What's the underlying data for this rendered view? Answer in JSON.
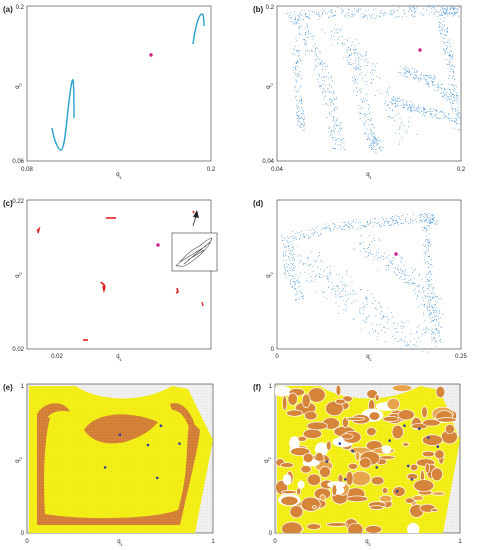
{
  "figure": {
    "panels": [
      {
        "letter": "(a)",
        "xlabel": "q",
        "xsub": "1",
        "ylabel": "q",
        "ysub": "2",
        "xticks": [
          "0.08",
          "0.2"
        ],
        "yticks": [
          "0.06",
          "0.2"
        ]
      },
      {
        "letter": "(b)",
        "xlabel": "q",
        "xsub": "1",
        "ylabel": "q",
        "ysub": "2",
        "xticks": [
          "0.04",
          "0.2"
        ],
        "yticks": [
          "0.04",
          "0.2"
        ]
      },
      {
        "letter": "(c)",
        "xlabel": "q",
        "xsub": "1",
        "ylabel": "q",
        "ysub": "2",
        "xticks": [
          "0.02",
          ""
        ],
        "yticks": [
          "0.02",
          "0.22"
        ]
      },
      {
        "letter": "(d)",
        "xlabel": "q",
        "xsub": "1",
        "ylabel": "q",
        "ysub": "2",
        "xticks": [
          "0",
          "0.25"
        ],
        "yticks": [
          "0",
          ""
        ]
      },
      {
        "letter": "(e)",
        "xlabel": "q",
        "xsub": "1",
        "ylabel": "q",
        "ysub": "2",
        "xticks": [
          "0",
          "1"
        ],
        "yticks": [
          "0",
          "1"
        ]
      },
      {
        "letter": "(f)",
        "xlabel": "q",
        "xsub": "2",
        "ylabel": "q",
        "ysub": "2",
        "xticks": [
          "0",
          "1"
        ],
        "yticks": [
          "0",
          "1"
        ]
      }
    ]
  },
  "colors": {
    "line": "#2a9fd0",
    "scatter": "#3d8fd6",
    "attractor": "#e32222",
    "fixed_point": "#cc1f8a",
    "basin_yellow": "#f5f018",
    "basin_orange": "#d6843a",
    "basin_orange_light": "#e8a44a",
    "basin_blue_dot": "#2f3f9a",
    "inset_stroke": "#333333"
  },
  "chart_data": [
    {
      "type": "line",
      "panel": "(a)",
      "xlim": [
        0.08,
        0.2
      ],
      "ylim": [
        0.06,
        0.2
      ],
      "series": [
        {
          "x": [
            0.085,
            0.0875,
            0.09,
            0.0925,
            0.095,
            0.0975,
            0.1
          ],
          "y": [
            0.08,
            0.075,
            0.07,
            0.085,
            0.105,
            0.125,
            0.095
          ]
        },
        {
          "x": [
            0.18,
            0.182,
            0.185,
            0.188,
            0.19,
            0.192
          ],
          "y": [
            0.175,
            0.185,
            0.19,
            0.195,
            0.193,
            0.19
          ]
        }
      ],
      "points": [
        {
          "x": 0.145,
          "y": 0.16
        }
      ]
    },
    {
      "type": "scatter",
      "panel": "(b)",
      "xlim": [
        0.04,
        0.2
      ],
      "ylim": [
        0.04,
        0.2
      ],
      "points": [
        {
          "x": 0.165,
          "y": 0.17
        }
      ]
    },
    {
      "type": "scatter",
      "panel": "(c)",
      "xlim": [
        0.0,
        0.23
      ],
      "ylim": [
        0.02,
        0.22
      ],
      "series": [
        {
          "x": [
            0.01
          ],
          "y": [
            0.17
          ]
        },
        {
          "x": [
            0.07
          ],
          "y": [
            0.175
          ]
        },
        {
          "x": [
            0.068
          ],
          "y": [
            0.1
          ]
        },
        {
          "x": [
            0.145
          ],
          "y": [
            0.095
          ]
        },
        {
          "x": [
            0.04
          ],
          "y": [
            0.035
          ]
        },
        {
          "x": [
            0.19
          ],
          "y": [
            0.08
          ]
        }
      ],
      "points": [
        {
          "x": 0.125,
          "y": 0.16
        }
      ]
    },
    {
      "type": "scatter",
      "panel": "(d)",
      "xlim": [
        0,
        0.25
      ],
      "ylim": [
        0,
        0.25
      ],
      "points": [
        {
          "x": 0.148,
          "y": 0.165
        }
      ]
    },
    {
      "type": "heatmap",
      "panel": "(e)",
      "xlim": [
        0,
        1
      ],
      "ylim": [
        0,
        1
      ],
      "points": [
        {
          "x": 0.5,
          "y": 0.66
        },
        {
          "x": 0.72,
          "y": 0.72
        },
        {
          "x": 0.65,
          "y": 0.59
        },
        {
          "x": 0.82,
          "y": 0.6
        },
        {
          "x": 0.42,
          "y": 0.44
        },
        {
          "x": 0.7,
          "y": 0.37
        }
      ]
    },
    {
      "type": "heatmap",
      "panel": "(f)",
      "xlim": [
        0,
        1
      ],
      "ylim": [
        0,
        1
      ],
      "points": [
        {
          "x": 0.35,
          "y": 0.6
        },
        {
          "x": 0.42,
          "y": 0.55
        },
        {
          "x": 0.7,
          "y": 0.72
        },
        {
          "x": 0.78,
          "y": 0.7
        },
        {
          "x": 0.83,
          "y": 0.64
        },
        {
          "x": 0.88,
          "y": 0.58
        },
        {
          "x": 0.62,
          "y": 0.62
        },
        {
          "x": 0.28,
          "y": 0.48
        },
        {
          "x": 0.55,
          "y": 0.44
        },
        {
          "x": 0.72,
          "y": 0.45
        },
        {
          "x": 0.38,
          "y": 0.36
        },
        {
          "x": 0.66,
          "y": 0.28
        },
        {
          "x": 0.74,
          "y": 0.36
        }
      ]
    }
  ]
}
